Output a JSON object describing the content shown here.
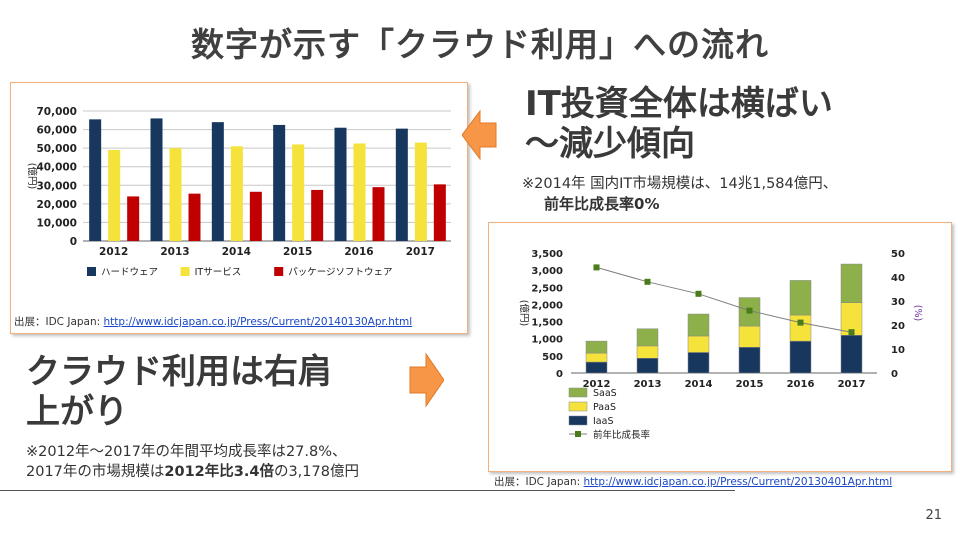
{
  "slide": {
    "title": "数字が示す「クラウド利用」への流れ",
    "page_number": "21"
  },
  "section_it": {
    "heading_line1": "IT投資全体は横ばい",
    "heading_line2": "～減少傾向",
    "note_line1": "※2014年 国内IT市場規模は、14兆1,584億円、",
    "note_line2": "前年比成長率0%"
  },
  "section_cloud": {
    "heading_line1": "クラウド利用は右肩",
    "heading_line2": "上がり",
    "note_line1": "※2012年～2017年の年間平均成長率は27.8%、",
    "note_line2_a": "2017年の市場規模は",
    "note_line2_b": "2012年比3.4倍",
    "note_line2_c": "の3,178億円"
  },
  "source_left": {
    "prefix": "出展：IDC Japan: ",
    "link": "http://www.idcjapan.co.jp/Press/Current/20140130Apr.html"
  },
  "source_right": {
    "prefix": "出展：IDC Japan: ",
    "link": "http://www.idcjapan.co.jp/Press/Current/20130401Apr.html"
  },
  "colors": {
    "hardware": "#17375e",
    "it_service": "#f5e23a",
    "package_sw": "#c00000",
    "saas": "#8db04a",
    "paas": "#f5e23a",
    "iaas": "#17375e",
    "growth": "#4a7c1a",
    "arrow": "#f79646"
  },
  "chart_data": [
    {
      "type": "bar",
      "categories": [
        "2012",
        "2013",
        "2014",
        "2015",
        "2016",
        "2017"
      ],
      "series": [
        {
          "name": "ハードウェア",
          "values": [
            65500,
            66000,
            64000,
            62500,
            61000,
            60500
          ]
        },
        {
          "name": "ITサービス",
          "values": [
            49000,
            50000,
            51000,
            52000,
            52500,
            53000
          ]
        },
        {
          "name": "パッケージソフトウェア",
          "values": [
            24000,
            25500,
            26500,
            27500,
            29000,
            30500
          ]
        }
      ],
      "ylabel": "(億円)",
      "ylim": [
        0,
        70000
      ],
      "yticks": [
        "0",
        "10,000",
        "20,000",
        "30,000",
        "40,000",
        "50,000",
        "60,000",
        "70,000"
      ],
      "grid": true,
      "legend": "bottom"
    },
    {
      "type": "bar",
      "stacked": true,
      "categories": [
        "2012",
        "2013",
        "2014",
        "2015",
        "2016",
        "2017"
      ],
      "series": [
        {
          "name": "IaaS",
          "values": [
            320,
            430,
            600,
            750,
            930,
            1100
          ]
        },
        {
          "name": "PaaS",
          "values": [
            260,
            360,
            480,
            620,
            760,
            950
          ]
        },
        {
          "name": "SaaS",
          "values": [
            350,
            500,
            640,
            830,
            1010,
            1128
          ]
        }
      ],
      "line_series": {
        "name": "前年比成長率",
        "axis": "right",
        "values": [
          44,
          38,
          33,
          26,
          21,
          17
        ]
      },
      "ylabel": "(億円)",
      "ylim": [
        0,
        3500
      ],
      "yticks": [
        "0",
        "500",
        "1,000",
        "1,500",
        "2,000",
        "2,500",
        "3,000",
        "3,500"
      ],
      "y2label": "(%)",
      "y2lim": [
        0,
        50
      ],
      "y2ticks": [
        "0",
        "10",
        "20",
        "30",
        "40",
        "50"
      ],
      "grid": false,
      "legend": "bottom"
    }
  ]
}
